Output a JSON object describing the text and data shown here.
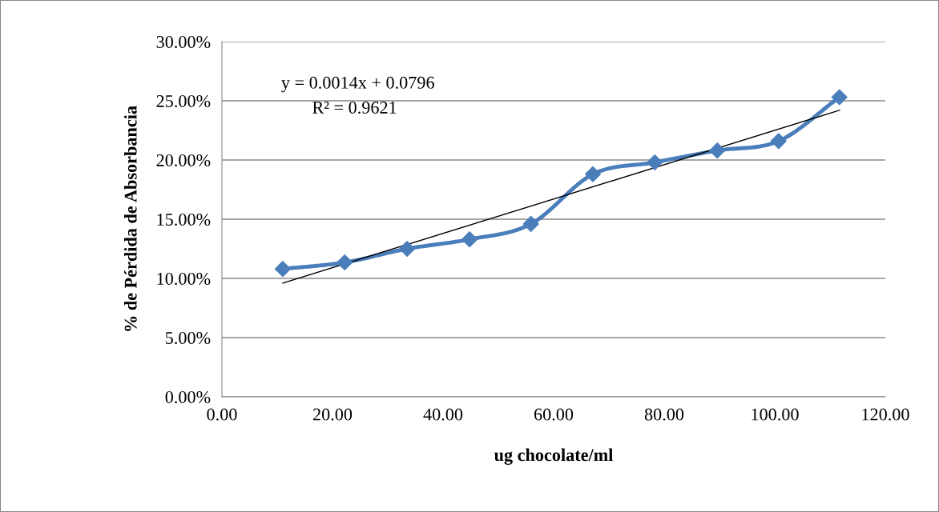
{
  "chart_data": {
    "type": "line",
    "xlabel": "ug chocolate/ml",
    "ylabel": "% de Pérdida de Absorbancia",
    "annotations": [
      "y = 0.0014x + 0.0796",
      "R² = 0.9621"
    ],
    "series": [
      {
        "color": "#4a7ebb",
        "marker": "diamond",
        "x": [
          11.0,
          22.2,
          33.5,
          44.8,
          55.9,
          67.1,
          78.3,
          89.6,
          100.7,
          111.7
        ],
        "values": [
          10.8,
          11.35,
          12.5,
          13.3,
          14.6,
          18.8,
          19.8,
          20.8,
          21.6,
          25.3
        ]
      },
      {
        "color": "#000000",
        "marker": "none",
        "x": [
          11.0,
          111.7
        ],
        "values": [
          9.6,
          24.2
        ]
      }
    ],
    "xlim": [
      0,
      120
    ],
    "xticks": [
      {
        "value": 0,
        "label": "0.00"
      },
      {
        "value": 20,
        "label": "20.00"
      },
      {
        "value": 40,
        "label": "40.00"
      },
      {
        "value": 60,
        "label": "60.00"
      },
      {
        "value": 80,
        "label": "80.00"
      },
      {
        "value": 100,
        "label": "100.00"
      },
      {
        "value": 120,
        "label": "120.00"
      }
    ],
    "ylim": [
      0,
      30
    ],
    "yticks": [
      {
        "value": 0,
        "label": "0.00%"
      },
      {
        "value": 5,
        "label": "5.00%"
      },
      {
        "value": 10,
        "label": "10.00%"
      },
      {
        "value": 15,
        "label": "15.00%"
      },
      {
        "value": 20,
        "label": "20.00%"
      },
      {
        "value": 25,
        "label": "25.00%"
      },
      {
        "value": 30,
        "label": "30.00%"
      }
    ],
    "grid": "y",
    "legend": false
  }
}
